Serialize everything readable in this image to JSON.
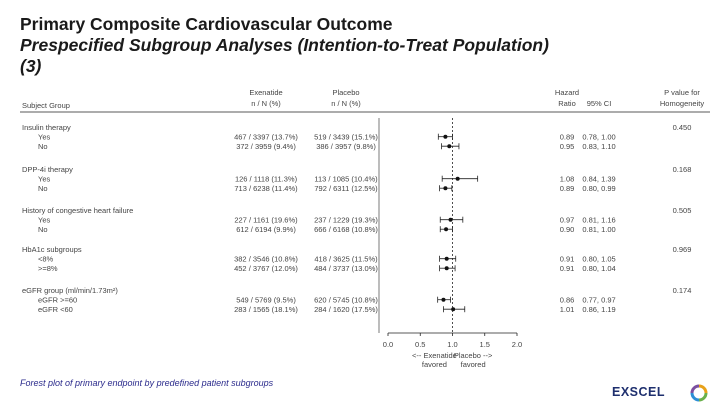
{
  "title": {
    "line1": "Primary Composite Cardiovascular Outcome",
    "line2": "Prespecified Subgroup Analyses (Intention-to-Treat Population)",
    "line3": "(3)"
  },
  "caption": "Forest plot of primary endpoint by predefined patient subgroups",
  "logo": {
    "text": "EXSCEL"
  },
  "colors": {
    "line": "#222222",
    "text": "#444444",
    "marker": "#111111",
    "brand": "#1e2f6e"
  },
  "chart_data": {
    "type": "forest",
    "headers": {
      "subject_group": "Subject Group",
      "exenatide": "Exenatide",
      "exenatide_sub": "n / N (%)",
      "placebo": "Placebo",
      "placebo_sub": "n / N (%)",
      "hazard": "Hazard",
      "ratio": "Ratio",
      "ci": "95% CI",
      "pvalue": "P value for",
      "homogeneity": "Homogeneity"
    },
    "xaxis": {
      "ticks": [
        0.0,
        0.5,
        1.0,
        1.5,
        2.0
      ],
      "tick_labels": [
        "0.0",
        "0.5",
        "1.0",
        "1.5",
        "2.0"
      ],
      "xlim": [
        0.0,
        2.0
      ],
      "reference": 1.0,
      "left_label_1": "<-- Exenatide",
      "left_label_2": "favored",
      "right_label_1": "Placebo -->",
      "right_label_2": "favored"
    },
    "groups": [
      {
        "name": "Insulin therapy",
        "pvalue": "0.450",
        "rows": [
          {
            "label": "Yes",
            "exenatide": "467 / 3397 (13.7%)",
            "placebo": "519 / 3439 (15.1%)",
            "hr": 0.89,
            "lo": 0.78,
            "hi": 1.0,
            "hr_text": "0.89",
            "ci_text": "0.78, 1.00"
          },
          {
            "label": "No",
            "exenatide": "372 / 3959 (9.4%)",
            "placebo": "386 / 3957 (9.8%)",
            "hr": 0.95,
            "lo": 0.83,
            "hi": 1.1,
            "hr_text": "0.95",
            "ci_text": "0.83, 1.10"
          }
        ]
      },
      {
        "name": "DPP-4i therapy",
        "pvalue": "0.168",
        "rows": [
          {
            "label": "Yes",
            "exenatide": "126 / 1118 (11.3%)",
            "placebo": "113 / 1085 (10.4%)",
            "hr": 1.08,
            "lo": 0.84,
            "hi": 1.39,
            "hr_text": "1.08",
            "ci_text": "0.84, 1.39"
          },
          {
            "label": "No",
            "exenatide": "713 / 6238 (11.4%)",
            "placebo": "792 / 6311 (12.5%)",
            "hr": 0.89,
            "lo": 0.8,
            "hi": 0.99,
            "hr_text": "0.89",
            "ci_text": "0.80, 0.99"
          }
        ]
      },
      {
        "name": "History of congestive heart failure",
        "pvalue": "0.505",
        "rows": [
          {
            "label": "Yes",
            "exenatide": "227 / 1161 (19.6%)",
            "placebo": "237 / 1229 (19.3%)",
            "hr": 0.97,
            "lo": 0.81,
            "hi": 1.16,
            "hr_text": "0.97",
            "ci_text": "0.81, 1.16"
          },
          {
            "label": "No",
            "exenatide": "612 / 6194 (9.9%)",
            "placebo": "666 / 6168 (10.8%)",
            "hr": 0.9,
            "lo": 0.81,
            "hi": 1.0,
            "hr_text": "0.90",
            "ci_text": "0.81, 1.00"
          }
        ]
      },
      {
        "name": "HbA1c subgroups",
        "pvalue": "0.969",
        "rows": [
          {
            "label": "<8%",
            "exenatide": "382 / 3546 (10.8%)",
            "placebo": "418 / 3625 (11.5%)",
            "hr": 0.91,
            "lo": 0.8,
            "hi": 1.05,
            "hr_text": "0.91",
            "ci_text": "0.80, 1.05"
          },
          {
            "label": ">=8%",
            "exenatide": "452 / 3767 (12.0%)",
            "placebo": "484 / 3737 (13.0%)",
            "hr": 0.91,
            "lo": 0.8,
            "hi": 1.04,
            "hr_text": "0.91",
            "ci_text": "0.80, 1.04"
          }
        ]
      },
      {
        "name": "eGFR group (ml/min/1.73m²)",
        "pvalue": "0.174",
        "rows": [
          {
            "label": "eGFR >=60",
            "exenatide": "549 / 5769 (9.5%)",
            "placebo": "620 / 5745 (10.8%)",
            "hr": 0.86,
            "lo": 0.77,
            "hi": 0.97,
            "hr_text": "0.86",
            "ci_text": "0.77, 0.97"
          },
          {
            "label": "eGFR <60",
            "exenatide": "283 / 1565 (18.1%)",
            "placebo": "284 / 1620 (17.5%)",
            "hr": 1.01,
            "lo": 0.86,
            "hi": 1.19,
            "hr_text": "1.01",
            "ci_text": "0.86, 1.19"
          }
        ]
      }
    ]
  }
}
